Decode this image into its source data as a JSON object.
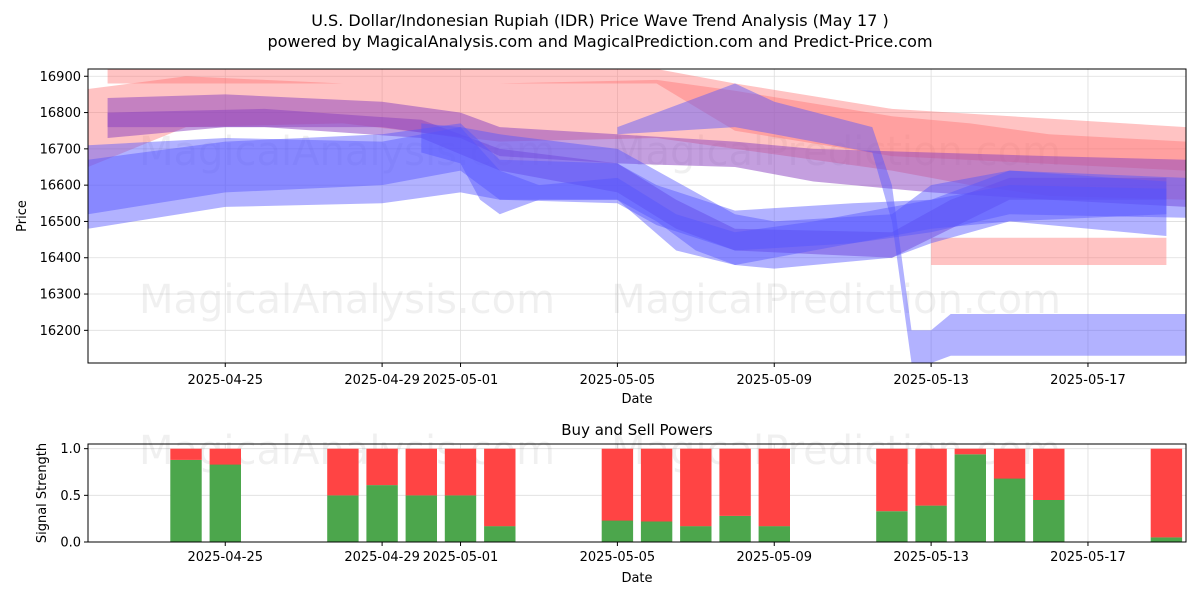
{
  "header": {
    "title": "U.S. Dollar/Indonesian Rupiah (IDR) Price Wave Trend Analysis (May 17 )",
    "subtitle": "powered by MagicalAnalysis.com and MagicalPrediction.com and Predict-Price.com"
  },
  "watermarks": [
    "MagicalAnalysis.com",
    "MagicalPrediction.com"
  ],
  "colors": {
    "red_band": "#ff6f6f",
    "blue_band": "#5555ff",
    "purple_overlap": "#8a3fbf",
    "buy": "#4ca64c",
    "sell": "#ff4444",
    "grid": "#dddddd"
  },
  "chart_data": [
    {
      "type": "area",
      "name": "price-wave-chart",
      "xlabel": "Date",
      "ylabel": "Price",
      "ylim": [
        16110,
        16920
      ],
      "yticks": [
        16200,
        16300,
        16400,
        16500,
        16600,
        16700,
        16800,
        16900
      ],
      "x_range": [
        "2025-04-21T12:00",
        "2025-05-19T12:00"
      ],
      "xticks": [
        "2025-04-25",
        "2025-04-29",
        "2025-05-01",
        "2025-05-05",
        "2025-05-09",
        "2025-05-13",
        "2025-05-17"
      ],
      "grid": true,
      "series": [
        {
          "color": "red",
          "band": [
            [
              "2025-04-21T12:00",
              16865,
              16650
            ],
            [
              "2025-04-24T00:00",
              16900,
              16760
            ],
            [
              "2025-04-28T00:00",
              16880,
              16770
            ],
            [
              "2025-05-02T00:00",
              16880,
              16720
            ],
            [
              "2025-05-06T00:00",
              16890,
              16730
            ],
            [
              "2025-05-08T00:00",
              16860,
              16700
            ],
            [
              "2025-05-12T00:00",
              16790,
              16640
            ],
            [
              "2025-05-14T00:00",
              16770,
              16600
            ],
            [
              "2025-05-16T00:00",
              16740,
              16570
            ],
            [
              "2025-05-19T12:00",
              16720,
              16560
            ]
          ]
        },
        {
          "color": "red",
          "band": [
            [
              "2025-04-22T00:00",
              16920,
              16880
            ],
            [
              "2025-05-06T00:00",
              16920,
              16880
            ],
            [
              "2025-05-08T00:00",
              16880,
              16750
            ],
            [
              "2025-05-12T00:00",
              16810,
              16680
            ],
            [
              "2025-05-19T12:00",
              16760,
              16640
            ]
          ]
        },
        {
          "color": "red",
          "band": [
            [
              "2025-05-13T00:00",
              16455,
              16380
            ],
            [
              "2025-05-19T00:00",
              16455,
              16380
            ]
          ]
        },
        {
          "color": "purple",
          "band": [
            [
              "2025-04-22T00:00",
              16840,
              16730
            ],
            [
              "2025-04-25T00:00",
              16850,
              16760
            ],
            [
              "2025-04-29T00:00",
              16830,
              16760
            ],
            [
              "2025-05-01T00:00",
              16800,
              16730
            ],
            [
              "2025-05-02T00:00",
              16760,
              16680
            ],
            [
              "2025-05-05T00:00",
              16740,
              16660
            ],
            [
              "2025-05-08T00:00",
              16720,
              16650
            ],
            [
              "2025-05-10T00:00",
              16700,
              16610
            ],
            [
              "2025-05-13T00:00",
              16690,
              16580
            ],
            [
              "2025-05-16T00:00",
              16680,
              16560
            ],
            [
              "2025-05-19T12:00",
              16670,
              16540
            ]
          ]
        },
        {
          "color": "purple",
          "band": [
            [
              "2025-04-22T00:00",
              16800,
              16760
            ],
            [
              "2025-04-26T00:00",
              16810,
              16760
            ],
            [
              "2025-04-30T00:00",
              16780,
              16730
            ],
            [
              "2025-05-02T00:00",
              16700,
              16640
            ],
            [
              "2025-05-05T00:00",
              16660,
              16580
            ],
            [
              "2025-05-06T12:00",
              16560,
              16480
            ],
            [
              "2025-05-08T00:00",
              16480,
              16420
            ],
            [
              "2025-05-12T00:00",
              16470,
              16400
            ],
            [
              "2025-05-13T12:00",
              16560,
              16480
            ],
            [
              "2025-05-15T00:00",
              16620,
              16560
            ],
            [
              "2025-05-19T00:00",
              16620,
              16560
            ]
          ]
        },
        {
          "color": "blue",
          "band": [
            [
              "2025-04-21T12:00",
              16710,
              16480
            ],
            [
              "2025-04-25T00:00",
              16730,
              16540
            ],
            [
              "2025-04-29T00:00",
              16720,
              16550
            ],
            [
              "2025-05-01T00:00",
              16760,
              16580
            ],
            [
              "2025-05-02T00:00",
              16740,
              16560
            ],
            [
              "2025-05-05T00:00",
              16700,
              16560
            ],
            [
              "2025-05-06T00:00",
              16640,
              16500
            ],
            [
              "2025-05-07T00:00",
              16580,
              16420
            ],
            [
              "2025-05-08T00:00",
              16520,
              16380
            ],
            [
              "2025-05-09T00:00",
              16500,
              16370
            ],
            [
              "2025-05-12T00:00",
              16520,
              16400
            ],
            [
              "2025-05-13T00:00",
              16600,
              16440
            ],
            [
              "2025-05-15T00:00",
              16640,
              16500
            ],
            [
              "2025-05-19T00:00",
              16610,
              16460
            ]
          ]
        },
        {
          "color": "blue",
          "band": [
            [
              "2025-04-21T12:00",
              16670,
              16520
            ],
            [
              "2025-04-25T00:00",
              16720,
              16580
            ],
            [
              "2025-04-29T00:00",
              16740,
              16600
            ],
            [
              "2025-05-01T00:00",
              16770,
              16640
            ],
            [
              "2025-05-02T00:00",
              16670,
              16560
            ],
            [
              "2025-05-05T00:00",
              16660,
              16550
            ],
            [
              "2025-05-06T00:00",
              16600,
              16490
            ],
            [
              "2025-05-08T00:00",
              16530,
              16420
            ],
            [
              "2025-05-11T00:00",
              16550,
              16440
            ],
            [
              "2025-05-13T00:00",
              16560,
              16470
            ],
            [
              "2025-05-15T00:00",
              16640,
              16520
            ],
            [
              "2025-05-19T12:00",
              16620,
              16510
            ]
          ]
        },
        {
          "color": "blue",
          "band": [
            [
              "2025-05-05T00:00",
              16760,
              16740
            ],
            [
              "2025-05-08T00:00",
              16880,
              16760
            ],
            [
              "2025-05-09T00:00",
              16830,
              16740
            ],
            [
              "2025-05-11T12:00",
              16760,
              16690
            ],
            [
              "2025-05-12T00:00",
              16600,
              16500
            ],
            [
              "2025-05-12T12:00",
              16200,
              16110
            ],
            [
              "2025-05-13T00:00",
              16200,
              16110
            ],
            [
              "2025-05-13T12:00",
              16245,
              16130
            ],
            [
              "2025-05-19T12:00",
              16245,
              16130
            ]
          ]
        },
        {
          "color": "blue",
          "band": [
            [
              "2025-04-30T00:00",
              16770,
              16690
            ],
            [
              "2025-05-01T00:00",
              16760,
              16660
            ],
            [
              "2025-05-01T12:00",
              16700,
              16560
            ],
            [
              "2025-05-02T00:00",
              16640,
              16520
            ],
            [
              "2025-05-03T00:00",
              16600,
              16560
            ],
            [
              "2025-05-05T00:00",
              16620,
              16560
            ],
            [
              "2025-05-06T12:00",
              16520,
              16420
            ],
            [
              "2025-05-08T00:00",
              16470,
              16380
            ],
            [
              "2025-05-10T00:00",
              16500,
              16420
            ],
            [
              "2025-05-13T00:00",
              16560,
              16480
            ],
            [
              "2025-05-15T00:00",
              16600,
              16500
            ],
            [
              "2025-05-19T00:00",
              16590,
              16520
            ]
          ]
        }
      ]
    },
    {
      "type": "bar",
      "name": "buy-sell-power-chart",
      "title": "Buy and Sell Powers",
      "xlabel": "Date",
      "ylabel": "Signal Strength",
      "ylim": [
        0,
        1.05
      ],
      "yticks": [
        "0.0",
        "0.5",
        "1.0"
      ],
      "x_range": [
        "2025-04-21T12:00",
        "2025-05-19T12:00"
      ],
      "xticks": [
        "2025-04-25",
        "2025-04-29",
        "2025-05-01",
        "2025-05-05",
        "2025-05-09",
        "2025-05-13",
        "2025-05-17"
      ],
      "grid": true,
      "categories": [
        "2025-04-24",
        "2025-04-25",
        "2025-04-28",
        "2025-04-29",
        "2025-04-30",
        "2025-05-01",
        "2025-05-02",
        "2025-05-05",
        "2025-05-06",
        "2025-05-07",
        "2025-05-08",
        "2025-05-09",
        "2025-05-12",
        "2025-05-13",
        "2025-05-14",
        "2025-05-15",
        "2025-05-16",
        "2025-05-19"
      ],
      "series": [
        {
          "name": "Buy",
          "values": [
            0.88,
            0.83,
            0.5,
            0.61,
            0.5,
            0.5,
            0.17,
            0.23,
            0.22,
            0.17,
            0.28,
            0.17,
            0.33,
            0.39,
            0.94,
            0.68,
            0.45,
            0.05
          ]
        },
        {
          "name": "Sell",
          "values": [
            0.12,
            0.17,
            0.5,
            0.39,
            0.5,
            0.5,
            0.83,
            0.77,
            0.78,
            0.83,
            0.72,
            0.83,
            0.67,
            0.61,
            0.06,
            0.32,
            0.55,
            0.95
          ]
        }
      ]
    }
  ]
}
